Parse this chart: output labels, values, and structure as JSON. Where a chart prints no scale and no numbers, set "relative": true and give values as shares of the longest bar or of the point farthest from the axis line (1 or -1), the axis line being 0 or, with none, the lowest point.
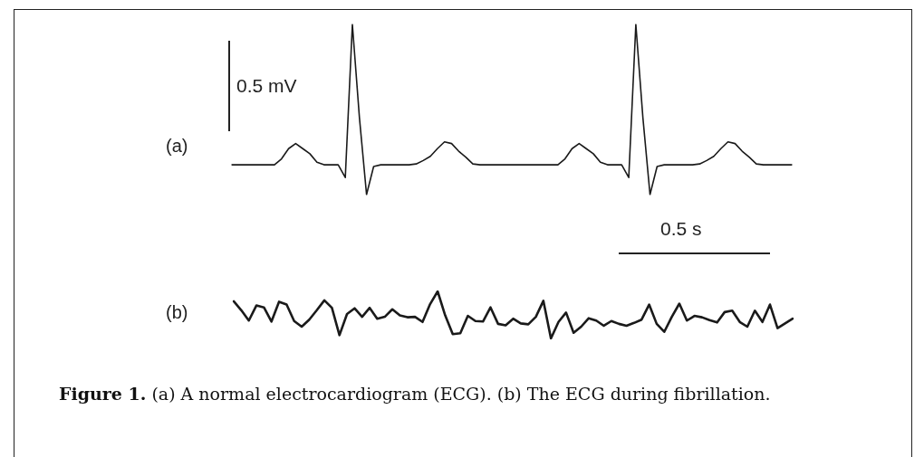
{
  "chart_data": [
    {
      "type": "line",
      "title": "(a)",
      "relative": true,
      "line_style": "solid",
      "annotations": [
        "0.5 mV",
        "0.5 s"
      ],
      "categories": [
        null,
        null,
        null,
        null,
        null,
        null,
        null,
        null,
        null,
        null,
        null,
        null,
        null,
        null,
        null,
        null,
        null,
        null,
        null,
        null,
        null,
        null,
        null,
        null,
        null,
        null,
        null,
        null,
        null,
        null,
        null,
        null,
        null,
        null,
        null,
        null,
        null,
        null,
        null,
        null,
        null,
        null,
        null,
        null,
        null,
        null,
        null,
        null,
        null,
        null,
        null,
        null,
        null,
        null,
        null,
        null,
        null,
        null,
        null,
        null,
        null,
        null,
        null,
        null,
        null,
        null,
        null,
        null,
        null,
        null,
        null,
        null,
        null,
        null,
        null,
        null,
        null,
        null,
        null,
        null
      ],
      "series": [
        {
          "color": "#1a1a1a",
          "values": [
            0.175,
            0.175,
            0.175,
            0.175,
            0.175,
            0.175,
            0.175,
            0.21,
            0.27,
            0.3,
            0.27,
            0.24,
            0.19,
            0.175,
            0.175,
            0.175,
            0.1,
            1,
            0.45,
            0,
            0.165,
            0.175,
            0.175,
            0.175,
            0.175,
            0.175,
            0.18,
            0.2,
            0.225,
            0.27,
            0.31,
            0.3,
            0.255,
            0.22,
            0.18,
            0.175,
            0.175,
            0.175,
            0.175,
            0.175,
            0.175,
            0.175,
            0.175,
            0.175,
            0.175,
            0.175,
            0.175,
            0.21,
            0.27,
            0.3,
            0.27,
            0.24,
            0.19,
            0.175,
            0.175,
            0.175,
            0.1,
            1,
            0.45,
            0,
            0.165,
            0.175,
            0.175,
            0.175,
            0.175,
            0.175,
            0.18,
            0.2,
            0.225,
            0.27,
            0.31,
            0.3,
            0.255,
            0.22,
            0.18,
            0.175,
            0.175,
            0.175,
            0.175,
            0.175
          ]
        }
      ]
    },
    {
      "type": "line",
      "title": "(b)",
      "relative": true,
      "line_style": "solid",
      "annotations": [
        "Figure 1. (a) A normal electrocardiogram (ECG). (b) The ECG during fibrillation."
      ],
      "categories": [
        null,
        null,
        null,
        null,
        null,
        null,
        null,
        null,
        null,
        null,
        null,
        null,
        null,
        null,
        null,
        null,
        null,
        null,
        null,
        null,
        null,
        null,
        null,
        null,
        null,
        null,
        null,
        null,
        null,
        null,
        null,
        null,
        null,
        null,
        null,
        null,
        null,
        null,
        null,
        null,
        null,
        null,
        null,
        null,
        null,
        null,
        null,
        null,
        null,
        null,
        null,
        null,
        null,
        null,
        null,
        null,
        null,
        null,
        null,
        null,
        null,
        null,
        null,
        null,
        null,
        null,
        null,
        null,
        null,
        null,
        null,
        null,
        null,
        null,
        null
      ],
      "series": [
        {
          "color": "#1a1a1a",
          "values": [
            0.79,
            0.6,
            0.38,
            0.7,
            0.66,
            0.36,
            0.78,
            0.72,
            0.37,
            0.25,
            0.4,
            0.6,
            0.81,
            0.65,
            0.07,
            0.52,
            0.64,
            0.46,
            0.65,
            0.42,
            0.46,
            0.62,
            0.49,
            0.45,
            0.46,
            0.35,
            0.73,
            1,
            0.49,
            0.09,
            0.11,
            0.48,
            0.37,
            0.36,
            0.66,
            0.31,
            0.28,
            0.42,
            0.32,
            0.3,
            0.46,
            0.8,
            0,
            0.35,
            0.55,
            0.12,
            0.25,
            0.43,
            0.38,
            0.27,
            0.37,
            0.31,
            0.27,
            0.33,
            0.4,
            0.72,
            0.31,
            0.14,
            0.46,
            0.74,
            0.38,
            0.48,
            0.45,
            0.39,
            0.34,
            0.56,
            0.59,
            0.35,
            0.25,
            0.59,
            0.35,
            0.72,
            0.22,
            0.32,
            0.42
          ]
        }
      ]
    }
  ]
}
